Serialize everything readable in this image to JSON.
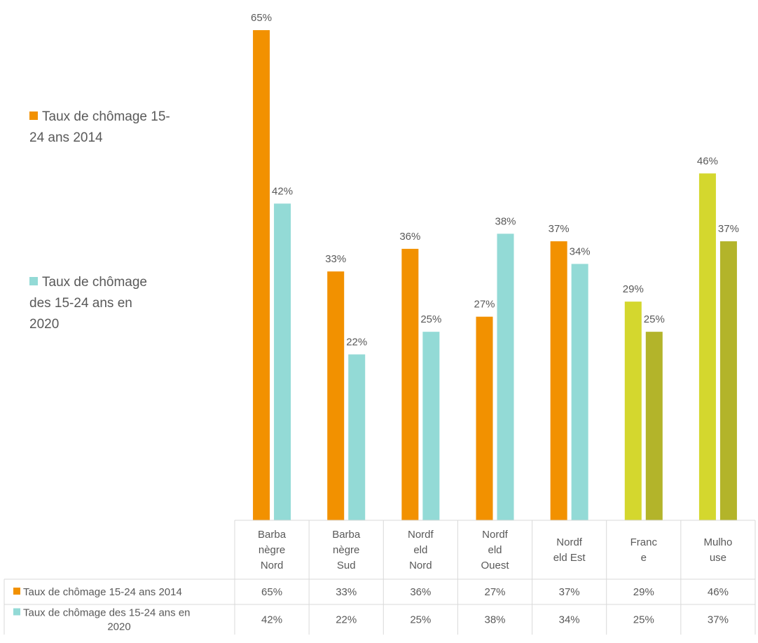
{
  "chart_data": {
    "type": "bar",
    "categories": [
      "Barbanègre Nord",
      "Barbanègre Sud",
      "Nordfeld Nord",
      "Nordfeld Ouest",
      "Nordfeld Est",
      "France",
      "Mulhouse"
    ],
    "category_labels": [
      [
        "Barba",
        "nègre",
        "Nord"
      ],
      [
        "Barba",
        "nègre",
        "Sud"
      ],
      [
        "Nordf",
        "eld",
        "Nord"
      ],
      [
        "Nordf",
        "eld",
        "Ouest"
      ],
      [
        "Nordf",
        "eld Est"
      ],
      [
        "Franc",
        "e"
      ],
      [
        "Mulho",
        "use"
      ]
    ],
    "series": [
      {
        "name": "Taux de chômage 15-24 ans 2014",
        "values": [
          65,
          33,
          36,
          27,
          37,
          29,
          46
        ],
        "labels": [
          "65%",
          "33%",
          "36%",
          "27%",
          "37%",
          "29%",
          "46%"
        ],
        "color": "#F29100",
        "point_colors": [
          "#F29100",
          "#F29100",
          "#F29100",
          "#F29100",
          "#F29100",
          "#D4D72E",
          "#D4D72E"
        ]
      },
      {
        "name": "Taux de chômage des 15-24 ans en 2020",
        "values": [
          42,
          22,
          25,
          38,
          34,
          25,
          37
        ],
        "labels": [
          "42%",
          "22%",
          "25%",
          "38%",
          "34%",
          "25%",
          "37%"
        ],
        "color": "#93DAD6",
        "point_colors": [
          "#93DAD6",
          "#93DAD6",
          "#93DAD6",
          "#93DAD6",
          "#93DAD6",
          "#B3B42A",
          "#B3B42A"
        ]
      }
    ],
    "ylim": [
      0,
      65
    ],
    "legend_position": "left",
    "data_table": true,
    "gridlines": false
  },
  "legend": {
    "items": [
      {
        "label": "Taux de chômage 15-24 ans 2014",
        "lines": [
          "Taux de chômage 15-",
          "24 ans 2014"
        ],
        "color": "#F29100"
      },
      {
        "label": "Taux de chômage des 15-24 ans en 2020",
        "lines": [
          "Taux de chômage",
          "des 15-24 ans en",
          "2020"
        ],
        "color": "#93DAD6"
      }
    ]
  },
  "table": {
    "row_labels": [
      [
        "Taux de chômage 15-24 ans 2014"
      ],
      [
        "Taux de chômage des 15-24 ans en",
        "2020"
      ]
    ]
  }
}
